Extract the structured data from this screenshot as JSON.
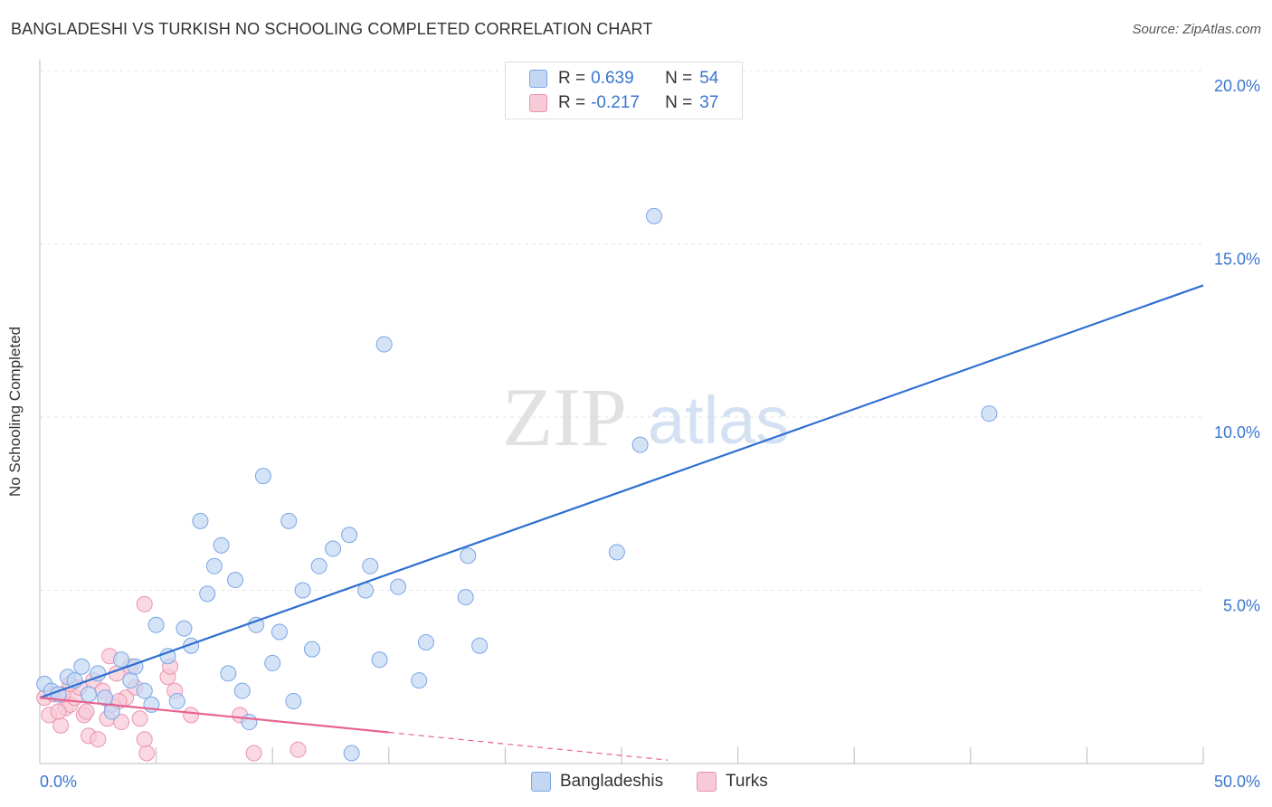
{
  "title": "BANGLADESHI VS TURKISH NO SCHOOLING COMPLETED CORRELATION CHART",
  "source": "Source: ZipAtlas.com",
  "watermark": {
    "zip": "ZIP",
    "atlas": "atlas"
  },
  "colors": {
    "blue_fill": "#c3d7f3",
    "blue_stroke": "#7aa6e6",
    "blue_line": "#2f6fd1",
    "pink_fill": "#f8c9d7",
    "pink_stroke": "#ea94ae",
    "pink_line": "#e8628d",
    "grid": "#e3e3e3",
    "axis_text": "#3a76d0"
  },
  "legend": {
    "rows": [
      {
        "r_label": "R =",
        "r_value": "0.639",
        "n_label": "N =",
        "n_value": "54",
        "color": "#c3d7f3",
        "border": "#7aa6e6"
      },
      {
        "r_label": "R =",
        "r_value": "-0.217",
        "n_label": "N =",
        "n_value": "37",
        "color": "#f8c9d7",
        "border": "#ea94ae"
      }
    ]
  },
  "bottom_legend": [
    {
      "label": "Bangladeshis",
      "color": "#c3d7f3",
      "border": "#7aa6e6"
    },
    {
      "label": "Turks",
      "color": "#f8c9d7",
      "border": "#ea94ae"
    }
  ],
  "chart_data": {
    "type": "scatter",
    "title": "BANGLADESHI VS TURKISH NO SCHOOLING COMPLETED CORRELATION CHART",
    "xlabel": "",
    "ylabel": "No Schooling Completed",
    "xlim": [
      0,
      50
    ],
    "ylim": [
      0,
      20
    ],
    "x_tick_labels": [
      {
        "value": 0,
        "label": "0.0%"
      },
      {
        "value": 50,
        "label": "50.0%"
      }
    ],
    "x_minor_ticks": [
      5,
      10,
      15,
      20,
      25,
      30,
      35,
      40,
      45,
      50
    ],
    "y_ticks": [
      {
        "value": 5,
        "label": "5.0%"
      },
      {
        "value": 10,
        "label": "10.0%"
      },
      {
        "value": 15,
        "label": "15.0%"
      },
      {
        "value": 20,
        "label": "20.0%"
      }
    ],
    "grid": true,
    "series": [
      {
        "name": "Bangladeshis",
        "r": 0.639,
        "n": 54,
        "trend": {
          "x": [
            0,
            50
          ],
          "y": [
            1.9,
            13.8
          ],
          "style": "solid"
        },
        "points": [
          {
            "x": 0.2,
            "y": 2.3
          },
          {
            "x": 0.5,
            "y": 2.1
          },
          {
            "x": 0.8,
            "y": 2.0
          },
          {
            "x": 1.2,
            "y": 2.5
          },
          {
            "x": 1.5,
            "y": 2.4
          },
          {
            "x": 1.8,
            "y": 2.8
          },
          {
            "x": 2.1,
            "y": 2.0
          },
          {
            "x": 2.5,
            "y": 2.6
          },
          {
            "x": 2.8,
            "y": 1.9
          },
          {
            "x": 3.1,
            "y": 1.5
          },
          {
            "x": 3.5,
            "y": 3.0
          },
          {
            "x": 3.9,
            "y": 2.4
          },
          {
            "x": 4.1,
            "y": 2.8
          },
          {
            "x": 4.5,
            "y": 2.1
          },
          {
            "x": 4.8,
            "y": 1.7
          },
          {
            "x": 5.0,
            "y": 4.0
          },
          {
            "x": 5.5,
            "y": 3.1
          },
          {
            "x": 5.9,
            "y": 1.8
          },
          {
            "x": 6.2,
            "y": 3.9
          },
          {
            "x": 6.5,
            "y": 3.4
          },
          {
            "x": 6.9,
            "y": 7.0
          },
          {
            "x": 7.2,
            "y": 4.9
          },
          {
            "x": 7.5,
            "y": 5.7
          },
          {
            "x": 7.8,
            "y": 6.3
          },
          {
            "x": 8.1,
            "y": 2.6
          },
          {
            "x": 8.4,
            "y": 5.3
          },
          {
            "x": 8.7,
            "y": 2.1
          },
          {
            "x": 9.0,
            "y": 1.2
          },
          {
            "x": 9.3,
            "y": 4.0
          },
          {
            "x": 9.6,
            "y": 8.3
          },
          {
            "x": 10.0,
            "y": 2.9
          },
          {
            "x": 10.3,
            "y": 3.8
          },
          {
            "x": 10.7,
            "y": 7.0
          },
          {
            "x": 10.9,
            "y": 1.8
          },
          {
            "x": 11.3,
            "y": 5.0
          },
          {
            "x": 11.7,
            "y": 3.3
          },
          {
            "x": 12.0,
            "y": 5.7
          },
          {
            "x": 12.6,
            "y": 6.2
          },
          {
            "x": 13.3,
            "y": 6.6
          },
          {
            "x": 14.2,
            "y": 5.7
          },
          {
            "x": 14.0,
            "y": 5.0
          },
          {
            "x": 14.6,
            "y": 3.0
          },
          {
            "x": 14.8,
            "y": 12.1
          },
          {
            "x": 15.4,
            "y": 5.1
          },
          {
            "x": 16.3,
            "y": 2.4
          },
          {
            "x": 16.6,
            "y": 3.5
          },
          {
            "x": 18.3,
            "y": 4.8
          },
          {
            "x": 18.4,
            "y": 6.0
          },
          {
            "x": 18.9,
            "y": 3.4
          },
          {
            "x": 24.8,
            "y": 6.1
          },
          {
            "x": 25.8,
            "y": 9.2
          },
          {
            "x": 26.4,
            "y": 15.8
          },
          {
            "x": 40.8,
            "y": 10.1
          },
          {
            "x": 13.4,
            "y": 0.3
          }
        ]
      },
      {
        "name": "Turks",
        "r": -0.217,
        "n": 37,
        "trend": {
          "x": [
            0,
            15
          ],
          "y": [
            1.9,
            0.9
          ],
          "style": "solid",
          "dashed_to": {
            "x": 27,
            "y": 0.1
          }
        },
        "points": [
          {
            "x": 0.2,
            "y": 1.9
          },
          {
            "x": 0.4,
            "y": 1.4
          },
          {
            "x": 0.6,
            "y": 2.0
          },
          {
            "x": 0.9,
            "y": 1.1
          },
          {
            "x": 1.1,
            "y": 1.6
          },
          {
            "x": 1.3,
            "y": 1.7
          },
          {
            "x": 1.5,
            "y": 1.9
          },
          {
            "x": 1.7,
            "y": 2.2
          },
          {
            "x": 1.9,
            "y": 1.4
          },
          {
            "x": 2.1,
            "y": 0.8
          },
          {
            "x": 2.3,
            "y": 2.4
          },
          {
            "x": 2.5,
            "y": 0.7
          },
          {
            "x": 2.7,
            "y": 2.1
          },
          {
            "x": 2.9,
            "y": 1.3
          },
          {
            "x": 3.1,
            "y": 1.7
          },
          {
            "x": 3.3,
            "y": 2.6
          },
          {
            "x": 3.5,
            "y": 1.2
          },
          {
            "x": 3.7,
            "y": 1.9
          },
          {
            "x": 3.9,
            "y": 2.8
          },
          {
            "x": 4.1,
            "y": 2.2
          },
          {
            "x": 4.3,
            "y": 1.3
          },
          {
            "x": 4.5,
            "y": 4.6
          },
          {
            "x": 4.6,
            "y": 0.3
          },
          {
            "x": 5.5,
            "y": 2.5
          },
          {
            "x": 5.8,
            "y": 2.1
          },
          {
            "x": 5.6,
            "y": 2.8
          },
          {
            "x": 6.5,
            "y": 1.4
          },
          {
            "x": 8.6,
            "y": 1.4
          },
          {
            "x": 9.2,
            "y": 0.3
          },
          {
            "x": 11.1,
            "y": 0.4
          },
          {
            "x": 3.0,
            "y": 3.1
          },
          {
            "x": 1.0,
            "y": 2.0
          },
          {
            "x": 0.8,
            "y": 1.5
          },
          {
            "x": 2.0,
            "y": 1.5
          },
          {
            "x": 4.5,
            "y": 0.7
          },
          {
            "x": 3.4,
            "y": 1.8
          },
          {
            "x": 1.3,
            "y": 2.3
          }
        ]
      }
    ]
  }
}
